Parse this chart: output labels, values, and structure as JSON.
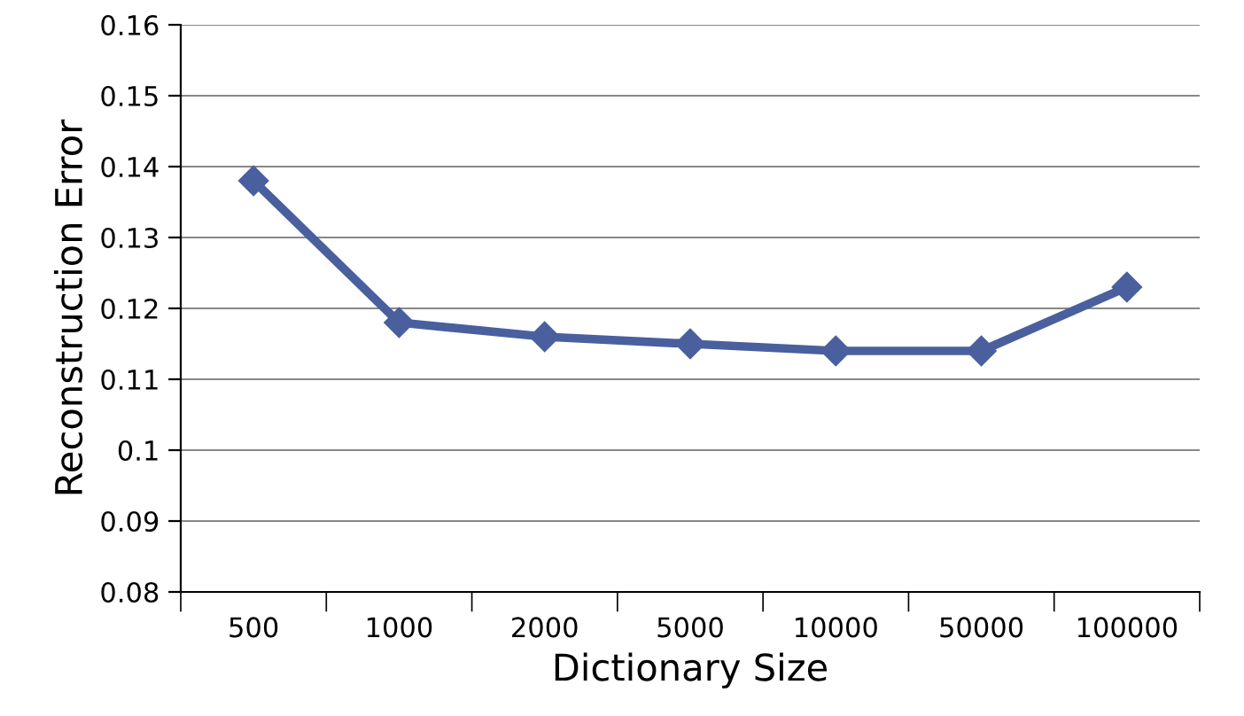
{
  "chart_data": {
    "type": "line",
    "xlabel": "Dictionary Size",
    "ylabel": "Reconstruction Error",
    "categories": [
      "500",
      "1000",
      "2000",
      "5000",
      "10000",
      "50000",
      "100000"
    ],
    "series": [
      {
        "color": "#4a5f9e",
        "values": [
          0.138,
          0.118,
          0.116,
          0.115,
          0.114,
          0.114,
          0.123
        ]
      }
    ],
    "ylim": [
      0.08,
      0.16
    ],
    "yticks": [
      0.08,
      0.09,
      0.1,
      0.11,
      0.12,
      0.13,
      0.14,
      0.15,
      0.16
    ],
    "grid": "y",
    "marker": "diamond",
    "line_style": "solid",
    "legend": false
  }
}
